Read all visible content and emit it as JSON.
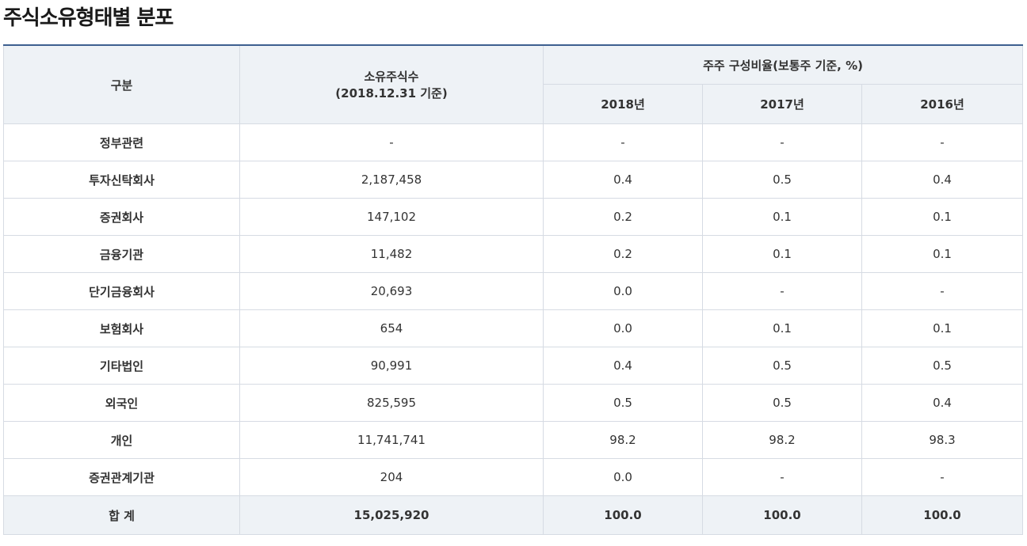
{
  "page": {
    "title": "주식소유형태별 분포"
  },
  "table": {
    "headers": {
      "category": "구분",
      "shares_line1": "소유주식수",
      "shares_line2": "(2018.12.31 기준)",
      "ratio_group": "주주 구성비율(보통주 기준, %)",
      "years": [
        "2018년",
        "2017년",
        "2016년"
      ]
    },
    "rows": [
      {
        "category": "정부관련",
        "shares": "-",
        "y2018": "-",
        "y2017": "-",
        "y2016": "-"
      },
      {
        "category": "투자신탁회사",
        "shares": "2,187,458",
        "y2018": "0.4",
        "y2017": "0.5",
        "y2016": "0.4"
      },
      {
        "category": "증권회사",
        "shares": "147,102",
        "y2018": "0.2",
        "y2017": "0.1",
        "y2016": "0.1"
      },
      {
        "category": "금융기관",
        "shares": "11,482",
        "y2018": "0.2",
        "y2017": "0.1",
        "y2016": "0.1"
      },
      {
        "category": "단기금융회사",
        "shares": "20,693",
        "y2018": "0.0",
        "y2017": "-",
        "y2016": "-"
      },
      {
        "category": "보험회사",
        "shares": "654",
        "y2018": "0.0",
        "y2017": "0.1",
        "y2016": "0.1"
      },
      {
        "category": "기타법인",
        "shares": "90,991",
        "y2018": "0.4",
        "y2017": "0.5",
        "y2016": "0.5"
      },
      {
        "category": "외국인",
        "shares": "825,595",
        "y2018": "0.5",
        "y2017": "0.5",
        "y2016": "0.4"
      },
      {
        "category": "개인",
        "shares": "11,741,741",
        "y2018": "98.2",
        "y2017": "98.2",
        "y2016": "98.3"
      },
      {
        "category": "증권관계기관",
        "shares": "204",
        "y2018": "0.0",
        "y2017": "-",
        "y2016": "-"
      }
    ],
    "total": {
      "label": "합 계",
      "shares": "15,025,920",
      "y2018": "100.0",
      "y2017": "100.0",
      "y2016": "100.0"
    }
  },
  "colors": {
    "top_border": "#3d5f8f",
    "header_bg": "#eef2f6",
    "cell_border": "#d6dbe3"
  }
}
